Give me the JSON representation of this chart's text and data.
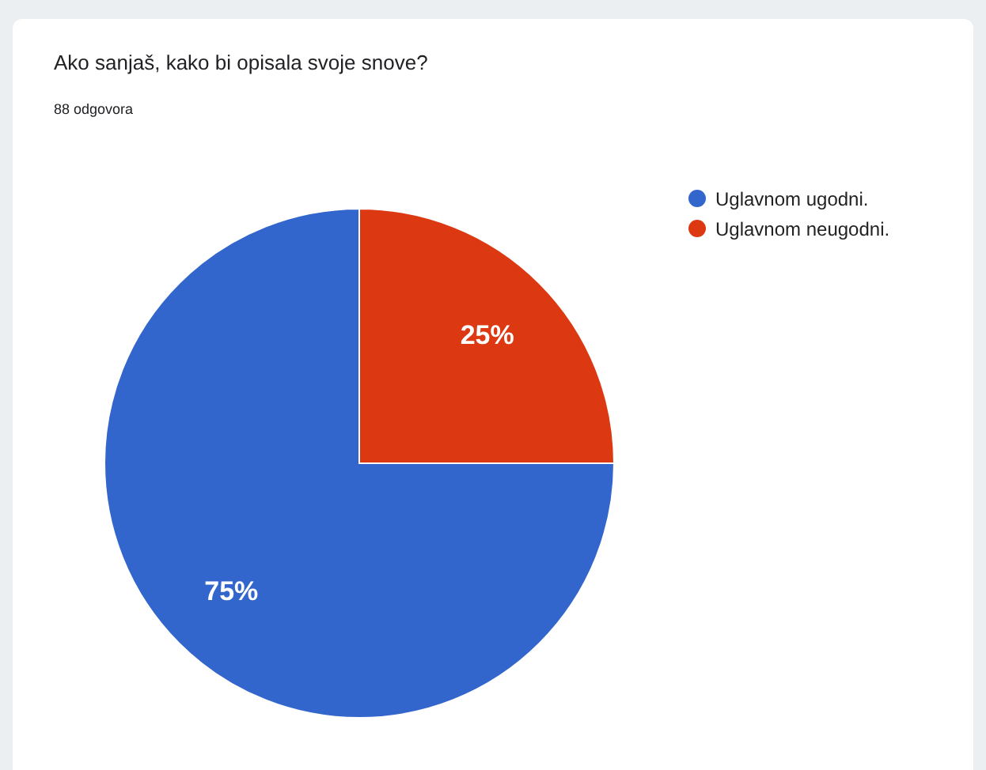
{
  "chart_data": {
    "type": "pie",
    "title": "Ako sanjaš, kako bi opisala svoje snove?",
    "subtitle": "88 odgovora",
    "categories": [
      "Uglavnom ugodni.",
      "Uglavnom neugodni."
    ],
    "values": [
      75,
      25
    ],
    "colors": [
      "#3366cc",
      "#dc3912"
    ],
    "value_labels": [
      "75%",
      "25%"
    ],
    "legend": "top right"
  }
}
